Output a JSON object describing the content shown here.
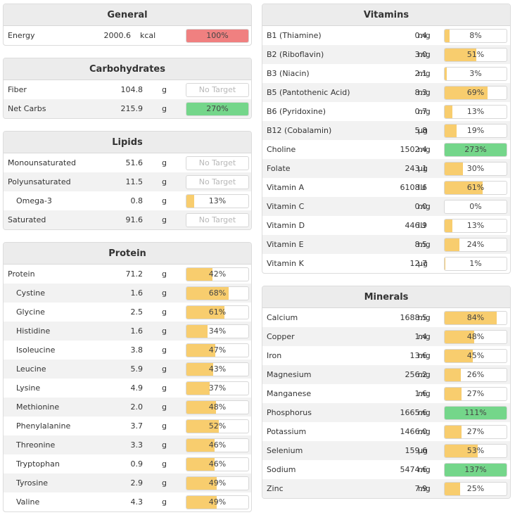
{
  "colors": {
    "under": "#f8cd6e",
    "good": "#74d68a",
    "over": "#f08080"
  },
  "general": {
    "title": "General",
    "rows": [
      {
        "name": "Energy",
        "amount": "2000.6",
        "unit": "kcal",
        "pct": 100,
        "label": "100%",
        "status": "over"
      }
    ]
  },
  "carbohydrates": {
    "title": "Carbohydrates",
    "rows": [
      {
        "name": "Fiber",
        "amount": "104.8",
        "unit": "g",
        "pct": null,
        "label": "No Target",
        "status": "none"
      },
      {
        "name": "Net Carbs",
        "amount": "215.9",
        "unit": "g",
        "pct": 100,
        "label": "270%",
        "status": "good"
      }
    ]
  },
  "lipids": {
    "title": "Lipids",
    "rows": [
      {
        "name": "Monounsaturated",
        "amount": "51.6",
        "unit": "g",
        "pct": null,
        "label": "No Target",
        "status": "none"
      },
      {
        "name": "Polyunsaturated",
        "amount": "11.5",
        "unit": "g",
        "pct": null,
        "label": "No Target",
        "status": "none"
      },
      {
        "name": "Omega-3",
        "amount": "0.8",
        "unit": "g",
        "pct": 13,
        "label": "13%",
        "status": "under",
        "sub": true
      },
      {
        "name": "Saturated",
        "amount": "91.6",
        "unit": "g",
        "pct": null,
        "label": "No Target",
        "status": "none"
      }
    ]
  },
  "protein": {
    "title": "Protein",
    "rows": [
      {
        "name": "Protein",
        "amount": "71.2",
        "unit": "g",
        "pct": 42,
        "label": "42%",
        "status": "under"
      },
      {
        "name": "Cystine",
        "amount": "1.6",
        "unit": "g",
        "pct": 68,
        "label": "68%",
        "status": "under",
        "sub": true
      },
      {
        "name": "Glycine",
        "amount": "2.5",
        "unit": "g",
        "pct": 61,
        "label": "61%",
        "status": "under",
        "sub": true
      },
      {
        "name": "Histidine",
        "amount": "1.6",
        "unit": "g",
        "pct": 34,
        "label": "34%",
        "status": "under",
        "sub": true
      },
      {
        "name": "Isoleucine",
        "amount": "3.8",
        "unit": "g",
        "pct": 47,
        "label": "47%",
        "status": "under",
        "sub": true
      },
      {
        "name": "Leucine",
        "amount": "5.9",
        "unit": "g",
        "pct": 43,
        "label": "43%",
        "status": "under",
        "sub": true
      },
      {
        "name": "Lysine",
        "amount": "4.9",
        "unit": "g",
        "pct": 37,
        "label": "37%",
        "status": "under",
        "sub": true
      },
      {
        "name": "Methionine",
        "amount": "2.0",
        "unit": "g",
        "pct": 48,
        "label": "48%",
        "status": "under",
        "sub": true
      },
      {
        "name": "Phenylalanine",
        "amount": "3.7",
        "unit": "g",
        "pct": 52,
        "label": "52%",
        "status": "under",
        "sub": true
      },
      {
        "name": "Threonine",
        "amount": "3.3",
        "unit": "g",
        "pct": 46,
        "label": "46%",
        "status": "under",
        "sub": true
      },
      {
        "name": "Tryptophan",
        "amount": "0.9",
        "unit": "g",
        "pct": 46,
        "label": "46%",
        "status": "under",
        "sub": true
      },
      {
        "name": "Tyrosine",
        "amount": "2.9",
        "unit": "g",
        "pct": 49,
        "label": "49%",
        "status": "under",
        "sub": true
      },
      {
        "name": "Valine",
        "amount": "4.3",
        "unit": "g",
        "pct": 49,
        "label": "49%",
        "status": "under",
        "sub": true
      }
    ]
  },
  "vitamins": {
    "title": "Vitamins",
    "rows": [
      {
        "name": "B1 (Thiamine)",
        "amount": "0.4",
        "unit": "mg",
        "pct": 8,
        "label": "8%",
        "status": "under"
      },
      {
        "name": "B2 (Riboflavin)",
        "amount": "3.0",
        "unit": "mg",
        "pct": 51,
        "label": "51%",
        "status": "under"
      },
      {
        "name": "B3 (Niacin)",
        "amount": "2.1",
        "unit": "mg",
        "pct": 3,
        "label": "3%",
        "status": "under"
      },
      {
        "name": "B5 (Pantothenic Acid)",
        "amount": "8.3",
        "unit": "mg",
        "pct": 69,
        "label": "69%",
        "status": "under"
      },
      {
        "name": "B6 (Pyridoxine)",
        "amount": "0.7",
        "unit": "mg",
        "pct": 13,
        "label": "13%",
        "status": "under"
      },
      {
        "name": "B12 (Cobalamin)",
        "amount": "5.8",
        "unit": "µg",
        "pct": 19,
        "label": "19%",
        "status": "under"
      },
      {
        "name": "Choline",
        "amount": "1502.4",
        "unit": "mg",
        "pct": 100,
        "label": "273%",
        "status": "good"
      },
      {
        "name": "Folate",
        "amount": "243.1",
        "unit": "µg",
        "pct": 30,
        "label": "30%",
        "status": "under"
      },
      {
        "name": "Vitamin A",
        "amount": "6108.6",
        "unit": "IU",
        "pct": 61,
        "label": "61%",
        "status": "under"
      },
      {
        "name": "Vitamin C",
        "amount": "0.0",
        "unit": "mg",
        "pct": 0,
        "label": "0%",
        "status": "under"
      },
      {
        "name": "Vitamin D",
        "amount": "446.9",
        "unit": "IU",
        "pct": 13,
        "label": "13%",
        "status": "under"
      },
      {
        "name": "Vitamin E",
        "amount": "8.5",
        "unit": "mg",
        "pct": 24,
        "label": "24%",
        "status": "under"
      },
      {
        "name": "Vitamin K",
        "amount": "12.7",
        "unit": "µg",
        "pct": 1,
        "label": "1%",
        "status": "under"
      }
    ]
  },
  "minerals": {
    "title": "Minerals",
    "rows": [
      {
        "name": "Calcium",
        "amount": "1688.5",
        "unit": "mg",
        "pct": 84,
        "label": "84%",
        "status": "under"
      },
      {
        "name": "Copper",
        "amount": "1.4",
        "unit": "mg",
        "pct": 48,
        "label": "48%",
        "status": "under"
      },
      {
        "name": "Iron",
        "amount": "13.6",
        "unit": "mg",
        "pct": 45,
        "label": "45%",
        "status": "under"
      },
      {
        "name": "Magnesium",
        "amount": "256.2",
        "unit": "mg",
        "pct": 26,
        "label": "26%",
        "status": "under"
      },
      {
        "name": "Manganese",
        "amount": "1.6",
        "unit": "mg",
        "pct": 27,
        "label": "27%",
        "status": "under"
      },
      {
        "name": "Phosphorus",
        "amount": "1665.6",
        "unit": "mg",
        "pct": 100,
        "label": "111%",
        "status": "good"
      },
      {
        "name": "Potassium",
        "amount": "1466.0",
        "unit": "mg",
        "pct": 27,
        "label": "27%",
        "status": "under"
      },
      {
        "name": "Selenium",
        "amount": "159.6",
        "unit": "µg",
        "pct": 53,
        "label": "53%",
        "status": "under"
      },
      {
        "name": "Sodium",
        "amount": "5474.6",
        "unit": "mg",
        "pct": 100,
        "label": "137%",
        "status": "good"
      },
      {
        "name": "Zinc",
        "amount": "7.9",
        "unit": "mg",
        "pct": 25,
        "label": "25%",
        "status": "under"
      }
    ]
  }
}
